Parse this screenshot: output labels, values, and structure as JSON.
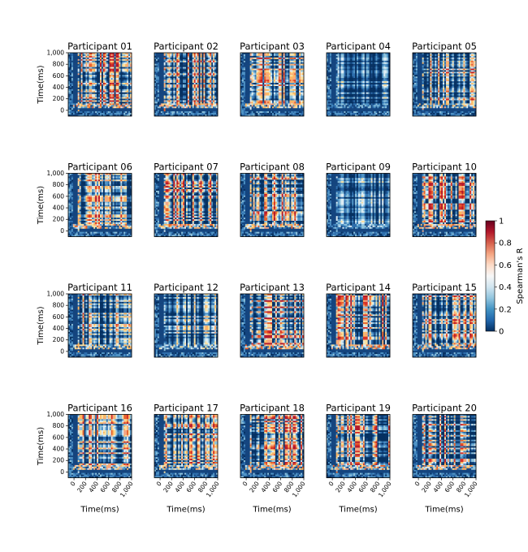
{
  "chart_data": {
    "type": "heatmap",
    "grid": {
      "rows": 4,
      "cols": 5
    },
    "panels": [
      {
        "title": "Participant 01",
        "peak_r": 0.92
      },
      {
        "title": "Participant 02",
        "peak_r": 0.95
      },
      {
        "title": "Participant 03",
        "peak_r": 0.85
      },
      {
        "title": "Participant 04",
        "peak_r": 0.45
      },
      {
        "title": "Participant 05",
        "peak_r": 0.8
      },
      {
        "title": "Participant 06",
        "peak_r": 0.9
      },
      {
        "title": "Participant 07",
        "peak_r": 0.95
      },
      {
        "title": "Participant 08",
        "peak_r": 0.92
      },
      {
        "title": "Participant 09",
        "peak_r": 0.5
      },
      {
        "title": "Participant 10",
        "peak_r": 0.95
      },
      {
        "title": "Participant 11",
        "peak_r": 0.75
      },
      {
        "title": "Participant 12",
        "peak_r": 0.6
      },
      {
        "title": "Participant 13",
        "peak_r": 0.95
      },
      {
        "title": "Participant 14",
        "peak_r": 0.95
      },
      {
        "title": "Participant 15",
        "peak_r": 0.9
      },
      {
        "title": "Participant 16",
        "peak_r": 0.85
      },
      {
        "title": "Participant 17",
        "peak_r": 0.85
      },
      {
        "title": "Participant 18",
        "peak_r": 0.95
      },
      {
        "title": "Participant 19",
        "peak_r": 0.92
      },
      {
        "title": "Participant 20",
        "peak_r": 0.9
      }
    ],
    "xlabel": "Time(ms)",
    "ylabel": "Time(ms)",
    "xticks": [
      "0",
      "200",
      "400",
      "600",
      "800",
      "1,000"
    ],
    "yticks": [
      "1,000",
      "800",
      "600",
      "400",
      "200",
      "0"
    ],
    "xlim": [
      -100,
      1000
    ],
    "ylim": [
      -100,
      1000
    ],
    "colorbar": {
      "label": "Spearman's R",
      "ticks": [
        "1",
        "0.8",
        "0.6",
        "0.4",
        "0.2",
        "0"
      ],
      "range": [
        0,
        1
      ],
      "colormap": "RdYlBu_r"
    }
  }
}
